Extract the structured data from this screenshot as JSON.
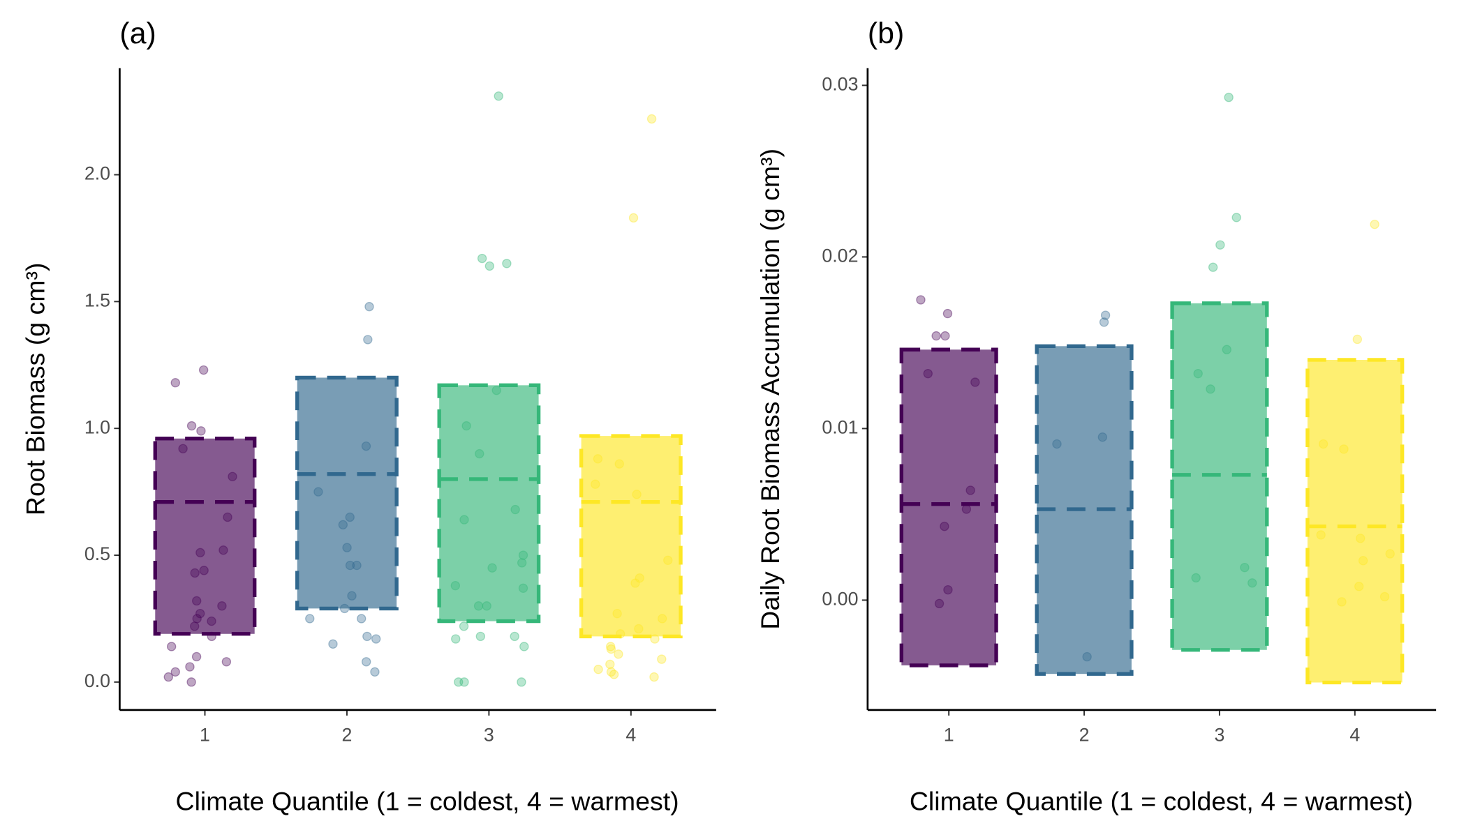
{
  "chart_data": [
    {
      "type": "box",
      "title": "(a)",
      "x_label": "Climate Quantile (1 = coldest, 4 = warmest)",
      "y_label": "Root Biomass (g cm³)",
      "categories": [
        "1",
        "2",
        "3",
        "4"
      ],
      "xlim": [
        0.4,
        4.6
      ],
      "ylim": [
        -0.11,
        2.42
      ],
      "yticks": [
        {
          "value": 0,
          "label": "0.0"
        },
        0.5,
        {
          "value": 1,
          "label": "1.0"
        },
        1.5,
        {
          "value": 2,
          "label": "2.0"
        }
      ],
      "boxes": [
        {
          "color": "#440154",
          "lower": 0.19,
          "middle": 0.71,
          "upper": 0.96,
          "points": [
            1.18,
            1.23,
            1.01,
            0.99,
            0.92,
            0.81,
            0.65,
            0.52,
            0.51,
            0.44,
            0.43,
            0.32,
            0.3,
            0.27,
            0.25,
            0.24,
            0.22,
            0.18,
            0.14,
            0.1,
            0.08,
            0.06,
            0.04,
            0.02,
            0.0
          ]
        },
        {
          "color": "#31688e",
          "lower": 0.29,
          "middle": 0.82,
          "upper": 1.2,
          "points": [
            1.48,
            1.35,
            0.93,
            0.75,
            0.65,
            0.62,
            0.46,
            0.46,
            0.53,
            0.34,
            0.29,
            0.25,
            0.25,
            0.18,
            0.17,
            0.15,
            0.08,
            0.04
          ]
        },
        {
          "color": "#35b779",
          "lower": 0.24,
          "middle": 0.8,
          "upper": 1.17,
          "points": [
            2.31,
            1.65,
            1.64,
            1.67,
            1.15,
            1.01,
            0.9,
            0.68,
            0.64,
            0.5,
            0.47,
            0.45,
            0.38,
            0.37,
            0.3,
            0.3,
            0.22,
            0.18,
            0.18,
            0.17,
            0.14,
            0.0,
            0.0,
            0.0
          ]
        },
        {
          "color": "#fde725",
          "lower": 0.18,
          "middle": 0.71,
          "upper": 0.97,
          "points": [
            2.22,
            1.83,
            0.88,
            0.86,
            0.78,
            0.74,
            0.48,
            0.41,
            0.39,
            0.25,
            0.27,
            0.21,
            0.19,
            0.17,
            0.14,
            0.13,
            0.11,
            0.09,
            0.07,
            0.05,
            0.04,
            0.03,
            0.02
          ]
        }
      ]
    },
    {
      "type": "box",
      "title": "(b)",
      "x_label": "Climate Quantile (1 = coldest, 4 = warmest)",
      "y_label": "Daily Root Biomass Accumulation (g cm³)",
      "categories": [
        "1",
        "2",
        "3",
        "4"
      ],
      "xlim": [
        0.4,
        4.6
      ],
      "ylim": [
        -0.0064,
        0.031
      ],
      "yticks": [
        {
          "value": 0,
          "label": "0.00"
        },
        {
          "value": 0.01,
          "label": "0.01"
        },
        {
          "value": 0.02,
          "label": "0.02"
        },
        {
          "value": 0.03,
          "label": "0.03"
        }
      ],
      "boxes": [
        {
          "color": "#440154",
          "lower": -0.0038,
          "middle": 0.0056,
          "upper": 0.0146,
          "points": [
            0.0175,
            0.0167,
            0.0154,
            0.0154,
            0.0132,
            0.0127,
            0.0064,
            0.0053,
            0.0043,
            0.0006,
            -0.0002
          ]
        },
        {
          "color": "#31688e",
          "lower": -0.0043,
          "middle": 0.0053,
          "upper": 0.0148,
          "points": [
            0.0166,
            0.0162,
            0.0095,
            0.0091,
            -0.0033
          ]
        },
        {
          "color": "#35b779",
          "lower": -0.0029,
          "middle": 0.0073,
          "upper": 0.0173,
          "points": [
            0.0293,
            0.0223,
            0.0207,
            0.0194,
            0.0146,
            0.0132,
            0.0123,
            0.0019,
            0.0013,
            0.001
          ]
        },
        {
          "color": "#fde725",
          "lower": -0.0048,
          "middle": 0.0043,
          "upper": 0.014,
          "points": [
            0.0219,
            0.0152,
            0.0091,
            0.0088,
            0.0038,
            0.0036,
            0.0027,
            0.0023,
            0.0008,
            0.0002,
            -0.0001
          ]
        }
      ]
    }
  ]
}
